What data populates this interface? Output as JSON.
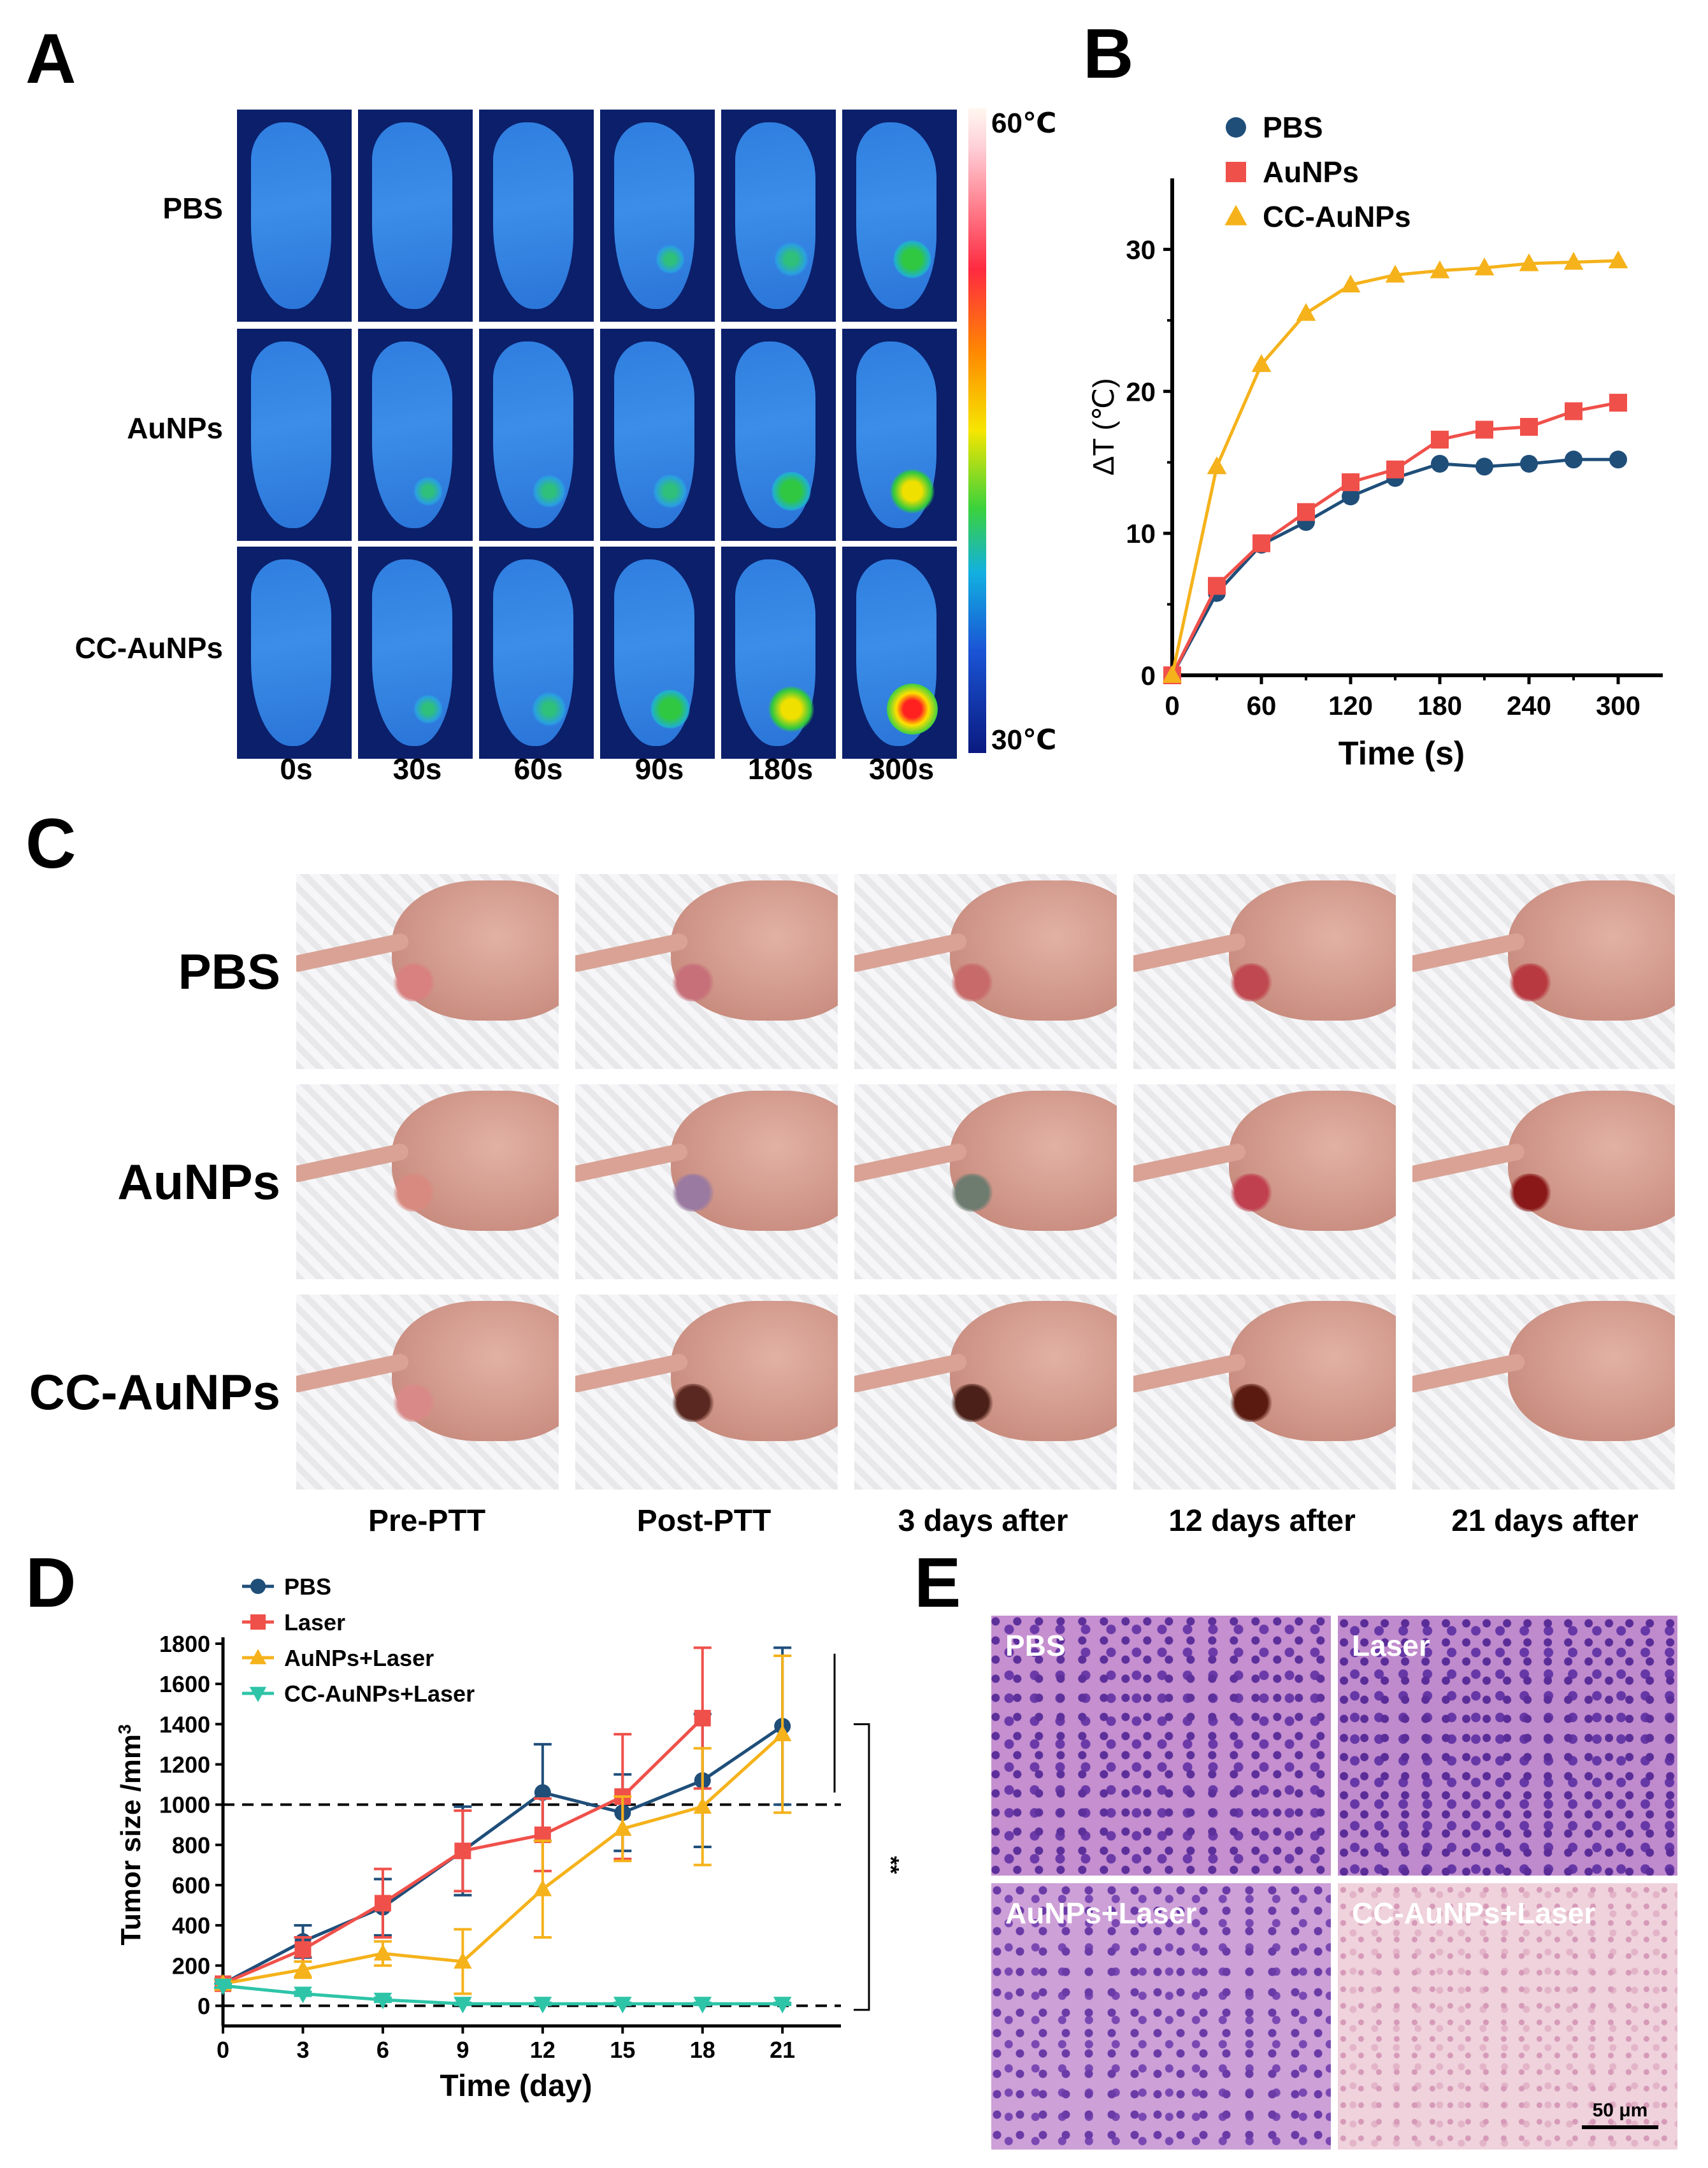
{
  "panels": {
    "a": "A",
    "b": "B",
    "c": "C",
    "d": "D",
    "e": "E"
  },
  "panel_a": {
    "rows": [
      "PBS",
      "AuNPs",
      "CC-AuNPs"
    ],
    "times": [
      "0s",
      "30s",
      "60s",
      "90s",
      "180s",
      "300s"
    ],
    "colorbar_max": "60℃",
    "colorbar_min": "30℃"
  },
  "panel_c": {
    "rows": [
      "PBS",
      "AuNPs",
      "CC-AuNPs"
    ],
    "cols": [
      "Pre-PTT",
      "Post-PTT",
      "3 days after",
      "12 days after",
      "21 days after"
    ]
  },
  "panel_e": {
    "labels": [
      "PBS",
      "Laser",
      "AuNPs+Laser",
      "CC-AuNPs+Laser"
    ],
    "scalebar": "50 μm"
  },
  "colors": {
    "pbs": "#1f4e79",
    "laser": "#f0504a",
    "aunps": "#f5b21b",
    "cc": "#2ec4a8"
  },
  "chart_data": [
    {
      "type": "line",
      "panel": "B",
      "xlabel": "Time (s)",
      "ylabel": "ΔT (℃)",
      "xlim": [
        0,
        300
      ],
      "ylim": [
        0,
        35
      ],
      "xticks": [
        0,
        60,
        120,
        180,
        240,
        300
      ],
      "yticks": [
        0,
        10,
        20,
        30
      ],
      "legend": "top-left",
      "x": [
        0,
        30,
        60,
        90,
        120,
        150,
        180,
        210,
        240,
        270,
        300
      ],
      "series": [
        {
          "name": "PBS",
          "color": "#1f4e79",
          "marker": "circle",
          "values": [
            0,
            5.8,
            9.2,
            10.8,
            12.6,
            13.9,
            14.9,
            14.7,
            14.9,
            15.2,
            15.2
          ]
        },
        {
          "name": "AuNPs",
          "color": "#f0504a",
          "marker": "square",
          "values": [
            0,
            6.3,
            9.3,
            11.5,
            13.6,
            14.5,
            16.6,
            17.3,
            17.5,
            18.6,
            19.2
          ]
        },
        {
          "name": "CC-AuNPs",
          "color": "#f5b21b",
          "marker": "triangle",
          "values": [
            0,
            14.7,
            21.9,
            25.5,
            27.5,
            28.2,
            28.5,
            28.7,
            29.0,
            29.1,
            29.2
          ]
        }
      ]
    },
    {
      "type": "line",
      "panel": "D",
      "xlabel": "Time (day)",
      "ylabel": "Tumor size /mm",
      "ylabel_sup": "3",
      "xlim": [
        0,
        22
      ],
      "ylim": [
        -100,
        1800
      ],
      "xticks": [
        0,
        3,
        6,
        9,
        12,
        15,
        18,
        21
      ],
      "yticks": [
        0,
        200,
        400,
        600,
        800,
        1000,
        1200,
        1400,
        1600,
        1800
      ],
      "reference_lines": [
        0,
        1000
      ],
      "significance": "**",
      "legend": "top-left",
      "series": [
        {
          "name": "PBS",
          "color": "#1f4e79",
          "marker": "circle",
          "x": [
            0,
            3,
            6,
            9,
            12,
            15,
            18,
            21
          ],
          "values": [
            110,
            320,
            490,
            770,
            1060,
            960,
            1120,
            1390
          ],
          "errors": [
            20,
            80,
            140,
            220,
            240,
            190,
            330,
            390
          ]
        },
        {
          "name": "Laser",
          "color": "#f0504a",
          "marker": "square",
          "x": [
            0,
            3,
            6,
            9,
            12,
            15,
            18
          ],
          "values": [
            110,
            280,
            510,
            770,
            850,
            1040,
            1430
          ],
          "errors": [
            20,
            60,
            170,
            200,
            180,
            310,
            350
          ]
        },
        {
          "name": "AuNPs+Laser",
          "color": "#f5b21b",
          "marker": "triangle",
          "x": [
            0,
            3,
            6,
            9,
            12,
            15,
            18,
            21
          ],
          "values": [
            110,
            180,
            260,
            220,
            580,
            880,
            990,
            1350
          ],
          "errors": [
            20,
            40,
            60,
            160,
            240,
            160,
            290,
            390
          ]
        },
        {
          "name": "CC-AuNPs+Laser",
          "color": "#2ec4a8",
          "marker": "triangle-down",
          "x": [
            0,
            3,
            6,
            9,
            12,
            15,
            18,
            21
          ],
          "values": [
            100,
            60,
            30,
            10,
            10,
            10,
            10,
            10
          ],
          "errors": [
            10,
            10,
            10,
            5,
            5,
            5,
            5,
            5
          ]
        }
      ]
    }
  ]
}
